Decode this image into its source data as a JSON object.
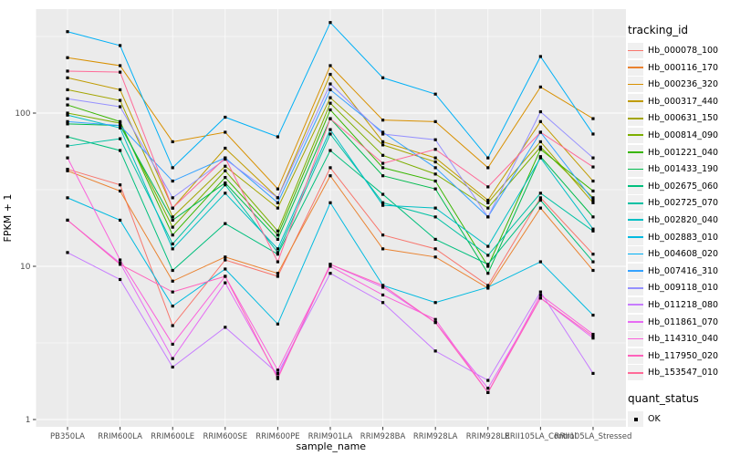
{
  "axes": {
    "xlabel": "sample_name",
    "ylabel": "FPKM + 1",
    "y_tick_labels": [
      "1",
      "10",
      "100"
    ]
  },
  "legend": {
    "tracking_title": "tracking_id",
    "quant_title": "quant_status",
    "quant_items": [
      {
        "label": "OK"
      }
    ]
  },
  "colors": {
    "panel_bg": "#EBEBEB",
    "grid": "#FFFFFF",
    "axis_text": "#4D4D4D",
    "tick": "#333333",
    "point": "#000000",
    "legend_key_bg": "#F0F0F0"
  },
  "chart_data": {
    "type": "line",
    "title": "",
    "xlabel": "sample_name",
    "ylabel": "FPKM + 1",
    "y_scale": "log10",
    "ylim": [
      1,
      480
    ],
    "y_ticks": [
      1,
      10,
      100
    ],
    "y_minor_ticks": [
      3.162,
      31.62,
      316.2
    ],
    "grid": true,
    "legend_position": "right",
    "point_shape": "filled-square",
    "point_color": "#000000",
    "categories": [
      "PB350LA",
      "RRIM600LA",
      "RRIM600LE",
      "RRIM600SE",
      "RRIM600PE",
      "RRIM901LA",
      "RRIM928BA",
      "RRIM928LA",
      "RRIM928LE",
      "RRII105LA_Control",
      "RRII105LA_Stressed"
    ],
    "series": [
      {
        "name": "Hb_000078_100",
        "color": "#F8766D",
        "values": [
          43,
          34,
          4.1,
          11,
          8.6,
          44,
          16,
          13,
          7.5,
          28,
          12
        ]
      },
      {
        "name": "Hb_000116_170",
        "color": "#EA8331",
        "values": [
          42,
          31,
          8.0,
          11.5,
          9.0,
          39,
          13,
          11.5,
          7.2,
          24,
          9.4
        ]
      },
      {
        "name": "Hb_000236_320",
        "color": "#D89000",
        "values": [
          230,
          204,
          65,
          75,
          32,
          204,
          90,
          88,
          44,
          148,
          92
        ]
      },
      {
        "name": "Hb_000317_440",
        "color": "#C09B00",
        "values": [
          170,
          142,
          24,
          59,
          28,
          179,
          65,
          51,
          27,
          88,
          36
        ]
      },
      {
        "name": "Hb_000631_150",
        "color": "#A3A500",
        "values": [
          142,
          121,
          21,
          45,
          24,
          126,
          62,
          48,
          26,
          65,
          26
        ]
      },
      {
        "name": "Hb_000814_090",
        "color": "#7CAE00",
        "values": [
          100,
          86,
          18,
          42,
          17,
          116,
          53,
          40,
          24,
          60,
          28
        ]
      },
      {
        "name": "Hb_001221_040",
        "color": "#39B600",
        "values": [
          113,
          88,
          16,
          38,
          16,
          105,
          44,
          36,
          10,
          58,
          31
        ]
      },
      {
        "name": "Hb_001433_190",
        "color": "#00BB4E",
        "values": [
          85,
          83,
          20,
          35,
          15,
          92,
          39,
          32,
          9,
          52,
          21
        ]
      },
      {
        "name": "Hb_002675_060",
        "color": "#00BF7D",
        "values": [
          70,
          57,
          9.4,
          19,
          12,
          57,
          29.5,
          15,
          10.3,
          27,
          10.7
        ]
      },
      {
        "name": "Hb_002725_070",
        "color": "#00C1A3",
        "values": [
          61,
          68,
          14,
          34,
          12.3,
          73,
          26,
          21,
          11.8,
          30,
          17
        ]
      },
      {
        "name": "Hb_002820_040",
        "color": "#00BFC4",
        "values": [
          97,
          80,
          13,
          30,
          13,
          78,
          25,
          24,
          13.5,
          51,
          17.5
        ]
      },
      {
        "name": "Hb_002883_010",
        "color": "#00BAE0",
        "values": [
          28,
          20,
          5.5,
          9.6,
          4.2,
          26,
          7.5,
          5.8,
          7.3,
          10.7,
          4.8
        ]
      },
      {
        "name": "Hb_004608_020",
        "color": "#00B0F6",
        "values": [
          340,
          276,
          44,
          94,
          70,
          390,
          170,
          133,
          51,
          234,
          73
        ]
      },
      {
        "name": "Hb_007416_310",
        "color": "#35A2FF",
        "values": [
          88,
          83,
          36,
          51,
          26,
          142,
          75,
          44,
          21,
          75,
          27
        ]
      },
      {
        "name": "Hb_009118_010",
        "color": "#9590FF",
        "values": [
          124,
          110,
          28,
          50,
          28,
          155,
          73,
          67,
          21,
          102,
          51
        ]
      },
      {
        "name": "Hb_011218_080",
        "color": "#C77CFF",
        "values": [
          12.3,
          8.2,
          2.2,
          4.0,
          2.0,
          9.0,
          5.8,
          2.8,
          1.8,
          6.8,
          2.0
        ]
      },
      {
        "name": "Hb_011861_070",
        "color": "#E76BF3",
        "values": [
          20,
          10.5,
          2.5,
          7.8,
          1.9,
          10.3,
          7.3,
          4.3,
          1.6,
          6.2,
          3.4
        ]
      },
      {
        "name": "Hb_114310_040",
        "color": "#FA62DB",
        "values": [
          51,
          11,
          3.1,
          8.6,
          2.1,
          10.0,
          6.5,
          4.5,
          1.5,
          6.5,
          3.6
        ]
      },
      {
        "name": "Hb_117950_020",
        "color": "#FF62BC",
        "values": [
          20,
          10.3,
          6.8,
          8.6,
          1.85,
          10.3,
          7.5,
          4.3,
          1.5,
          6.2,
          3.5
        ]
      },
      {
        "name": "Hb_153547_010",
        "color": "#FF6A98",
        "values": [
          188,
          185,
          24,
          51,
          10.7,
          92,
          47,
          58,
          33,
          75,
          44.5
        ]
      }
    ]
  }
}
